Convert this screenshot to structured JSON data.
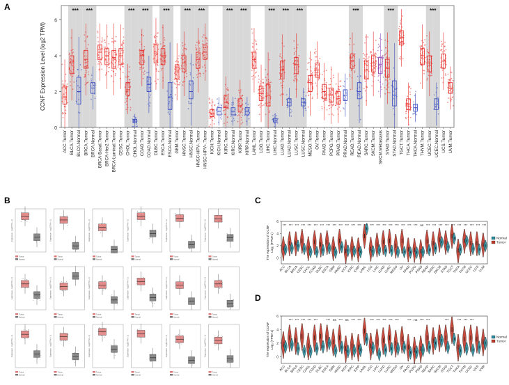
{
  "figure": {
    "panel_labels": [
      "A",
      "B",
      "C",
      "D"
    ]
  },
  "colors": {
    "tumor": "#e8312c",
    "normal": "#3a4ec2",
    "metastasis": "#8e44ad",
    "shade": "#d8d8d8",
    "violin_normal": "#2a8c9c",
    "violin_tumor": "#c0392b",
    "gepia_tumor": "#e07a7a",
    "gepia_normal": "#777777"
  },
  "chart_data": [
    {
      "id": "A",
      "type": "box",
      "ylabel": "CCNF Expression Level (log2 TPM)",
      "yticks": [
        0,
        2,
        4,
        6
      ],
      "ylim": [
        0,
        6.8
      ],
      "categories": [
        "ACC.Tumor",
        "BLCA.Tumor",
        "BLCA.Normal",
        "BRCA.Tumor",
        "BRCA.Normal",
        "BRCA-Basal.Tumor",
        "BRCA-Her2.Tumor",
        "BRCA-Luminal.Tumor",
        "CESC.Tumor",
        "CHOL.Tumor",
        "CHOL.Normal",
        "COAD.Tumor",
        "COAD.Normal",
        "DLBC.Tumor",
        "ESCA.Tumor",
        "ESCA.Normal",
        "GBM.Tumor",
        "HNSC.Tumor",
        "HNSC.Normal",
        "HNSC-HPV-.Tumor",
        "HNSC-HPV+.Tumor",
        "KICH.Tumor",
        "KICH.Normal",
        "KIRC.Tumor",
        "KIRC.Normal",
        "KIRP.Tumor",
        "KIRP.Normal",
        "LAML.Tumor",
        "LGG.Tumor",
        "LIHC.Tumor",
        "LIHC.Normal",
        "LUAD.Tumor",
        "LUAD.Normal",
        "LUSC.Tumor",
        "LUSC.Normal",
        "MESO.Tumor",
        "OV.Tumor",
        "PAAD.Tumor",
        "PCPG.Tumor",
        "PRAD.Tumor",
        "PRAD.Normal",
        "READ.Tumor",
        "READ.Normal",
        "SARC.Tumor",
        "SKCM.Tumor",
        "SKCM.Metastasis",
        "STAD.Tumor",
        "STAD.Normal",
        "TGCT.Tumor",
        "THCA.Tumor",
        "THCA.Normal",
        "THYM.Tumor",
        "UCEC.Tumor",
        "UCEC.Normal",
        "UCS.Tumor",
        "UVM.Tumor"
      ],
      "medians": [
        1.7,
        3.6,
        2.0,
        3.8,
        2.2,
        4.2,
        4.0,
        3.9,
        4.0,
        2.1,
        0.35,
        4.0,
        2.4,
        4.1,
        4.0,
        1.7,
        3.1,
        3.6,
        2.0,
        3.8,
        4.2,
        0.8,
        0.9,
        1.4,
        0.9,
        1.2,
        0.9,
        3.8,
        1.9,
        1.8,
        0.4,
        3.2,
        1.4,
        3.5,
        1.4,
        2.5,
        3.2,
        2.0,
        1.8,
        1.6,
        1.8,
        3.7,
        2.0,
        3.2,
        3.6,
        3.5,
        3.3,
        1.8,
        5.0,
        1.3,
        1.1,
        4.0,
        3.6,
        1.3,
        3.7,
        2.2
      ],
      "q1": [
        1.3,
        3.0,
        1.3,
        3.3,
        1.9,
        3.8,
        3.5,
        3.3,
        3.5,
        1.8,
        0.25,
        3.5,
        2.0,
        3.6,
        3.5,
        1.0,
        2.7,
        3.1,
        1.6,
        3.3,
        3.8,
        0.6,
        0.7,
        1.1,
        0.7,
        0.9,
        0.7,
        3.3,
        1.5,
        1.2,
        0.3,
        2.7,
        1.2,
        3.0,
        1.2,
        2.0,
        2.8,
        1.6,
        1.4,
        1.3,
        1.5,
        3.3,
        1.6,
        2.7,
        3.1,
        3.0,
        2.8,
        1.2,
        4.6,
        1.0,
        0.9,
        3.5,
        3.1,
        1.0,
        3.3,
        1.9
      ],
      "q3": [
        2.3,
        4.0,
        2.8,
        4.3,
        2.5,
        4.6,
        4.4,
        4.3,
        4.4,
        2.5,
        0.45,
        4.3,
        2.8,
        4.6,
        4.4,
        2.5,
        3.5,
        4.0,
        2.6,
        4.2,
        4.6,
        1.0,
        1.1,
        1.8,
        1.1,
        1.6,
        1.1,
        4.2,
        2.3,
        2.4,
        0.5,
        3.7,
        1.6,
        3.9,
        1.6,
        2.9,
        3.6,
        2.4,
        2.2,
        2.0,
        2.1,
        4.1,
        2.5,
        3.7,
        4.0,
        3.9,
        3.8,
        2.6,
        5.4,
        1.6,
        1.3,
        4.4,
        4.0,
        1.6,
        4.1,
        2.5
      ],
      "shaded": [
        false,
        true,
        true,
        true,
        true,
        false,
        false,
        false,
        false,
        true,
        true,
        true,
        true,
        false,
        true,
        true,
        false,
        true,
        true,
        true,
        true,
        false,
        false,
        true,
        true,
        true,
        true,
        false,
        false,
        true,
        true,
        true,
        true,
        true,
        true,
        false,
        false,
        false,
        false,
        false,
        false,
        true,
        true,
        false,
        false,
        false,
        true,
        true,
        false,
        false,
        false,
        false,
        true,
        true,
        false,
        false
      ],
      "significance": [
        {
          "index": 1,
          "label": "***"
        },
        {
          "index": 3,
          "label": "***"
        },
        {
          "index": 9,
          "label": "***"
        },
        {
          "index": 11,
          "label": "***"
        },
        {
          "index": 14,
          "label": "***"
        },
        {
          "index": 17,
          "label": "***"
        },
        {
          "index": 19,
          "label": "***"
        },
        {
          "index": 23,
          "label": "***"
        },
        {
          "index": 25,
          "label": "***"
        },
        {
          "index": 29,
          "label": "***"
        },
        {
          "index": 31,
          "label": "***"
        },
        {
          "index": 33,
          "label": "***"
        },
        {
          "index": 41,
          "label": "***"
        },
        {
          "index": 46,
          "label": "***"
        },
        {
          "index": 52,
          "label": "***"
        }
      ]
    },
    {
      "id": "B",
      "type": "box-grid",
      "rows": 3,
      "cols": 6,
      "ylabel": "Expression - log2(TPM + 1)",
      "legend_tumor": "Tumor",
      "legend_normal": "Normal",
      "cells": [
        {
          "tumor": 5.8,
          "normal": 2.4
        },
        {
          "tumor": 5.2,
          "normal": 1.0
        },
        {
          "tumor": 4.0,
          "normal": 0.4
        },
        {
          "tumor": 5.8,
          "normal": 3.0
        },
        {
          "tumor": 5.5,
          "normal": 1.2
        },
        {
          "tumor": 5.4,
          "normal": 2.3
        },
        {
          "tumor": 4.2,
          "normal": 2.4
        },
        {
          "tumor": 3.8,
          "normal": 5.5
        },
        {
          "tumor": 4.0,
          "normal": 1.6
        },
        {
          "tumor": 4.6,
          "normal": 2.0
        },
        {
          "tumor": 4.0,
          "normal": 1.4
        },
        {
          "tumor": 4.2,
          "normal": 1.0
        },
        {
          "tumor": 5.4,
          "normal": 2.2
        },
        {
          "tumor": 5.0,
          "normal": 1.8
        },
        {
          "tumor": 5.8,
          "normal": 3.0
        },
        {
          "tumor": 5.5,
          "normal": 1.6
        },
        {
          "tumor": 4.6,
          "normal": 1.2
        },
        {
          "tumor": 4.4,
          "normal": 1.4
        }
      ]
    },
    {
      "id": "C",
      "type": "violin",
      "ylabel": "The expression of CCNF\nLog₂ (TPM+1)",
      "yticks": [
        0,
        2,
        4,
        6
      ],
      "ylim": [
        -1,
        6
      ],
      "legend": [
        "Normal",
        "Tumor"
      ],
      "categories": [
        "ACC",
        "BLCA",
        "BRCA",
        "CESC",
        "CHOL",
        "COAD",
        "DLBC",
        "ESCA",
        "GBM",
        "HNSC",
        "KICH",
        "KIRC",
        "KIRP",
        "LAML",
        "LGG",
        "LIHC",
        "LUAD",
        "LUSC",
        "MESO",
        "OV",
        "PAAD",
        "PCPG",
        "PRAD",
        "READ",
        "SARC",
        "SKCM",
        "STAD",
        "TGCT",
        "THCA",
        "THYM",
        "UCEC",
        "UCS",
        "UVM"
      ],
      "normal_medians": [
        1.4,
        1.6,
        2.0,
        1.5,
        1.0,
        1.0,
        1.3,
        1.6,
        0.9,
        1.8,
        1.2,
        1.1,
        1.0,
        4.8,
        1.1,
        1.3,
        1.2,
        1.2,
        1.0,
        1.0,
        0.9,
        0.9,
        1.0,
        1.3,
        1.6,
        2.6,
        1.8,
        3.2,
        1.4,
        2.8,
        1.5,
        1.4,
        2.0
      ],
      "tumor_medians": [
        1.6,
        2.4,
        2.4,
        2.8,
        1.6,
        2.6,
        2.2,
        2.6,
        1.6,
        2.8,
        1.1,
        1.6,
        1.4,
        3.6,
        1.5,
        2.2,
        2.6,
        2.8,
        2.0,
        2.8,
        1.4,
        1.3,
        1.1,
        2.7,
        2.4,
        3.0,
        2.6,
        3.6,
        1.2,
        2.8,
        2.4,
        2.4,
        2.2
      ],
      "significance": [
        "***",
        "***",
        "***",
        "***",
        "***",
        "***",
        "***",
        "***",
        "***",
        "***",
        "***",
        "***",
        "***",
        "***",
        "***",
        "***",
        "***",
        "***",
        "***",
        "***",
        "***",
        "***",
        "ns",
        "***",
        "***",
        "***",
        "***",
        "***",
        "***",
        "***",
        "***",
        "***",
        "***"
      ]
    },
    {
      "id": "D",
      "type": "violin",
      "ylabel": "The expression of CCNF\nLog₂ (TPM+1)",
      "yticks": [
        0,
        2,
        4,
        6
      ],
      "ylim": [
        -1,
        6
      ],
      "legend": [
        "Normal",
        "Tumor"
      ],
      "categories": [
        "ACC",
        "BLCA",
        "BRCA",
        "CESC",
        "CHOL",
        "COAD",
        "DLBC",
        "ESCA",
        "GBM",
        "HNSC",
        "KICH",
        "KIRC",
        "KIRP",
        "LAML",
        "LGG",
        "LIHC",
        "LUAD",
        "LUSC",
        "MESO",
        "OV",
        "PAAD",
        "PCPG",
        "PRAD",
        "READ",
        "SARC",
        "SKCM",
        "STAD",
        "TGCT",
        "THCA",
        "THYM",
        "UCEC",
        "UCS",
        "UVM"
      ],
      "normal_medians": [
        1.5,
        1.8,
        1.2,
        0.8,
        0.8,
        1.2,
        1.5,
        2.0,
        0.9,
        1.4,
        0.8,
        0.9,
        1.0,
        2.6,
        1.3,
        0.4,
        1.0,
        1.2,
        1.2,
        1.4,
        0.6,
        0.7,
        1.0,
        1.4,
        2.0,
        2.4,
        1.4,
        2.6,
        0.9,
        1.2,
        1.0,
        1.4,
        2.0
      ],
      "tumor_medians": [
        1.8,
        2.8,
        2.4,
        3.0,
        1.6,
        2.8,
        3.0,
        2.8,
        2.2,
        2.8,
        1.2,
        1.6,
        1.4,
        3.8,
        1.6,
        2.2,
        2.4,
        2.8,
        2.0,
        2.6,
        1.4,
        1.0,
        1.2,
        2.8,
        2.4,
        2.8,
        2.8,
        4.0,
        1.4,
        2.6,
        2.8,
        2.6,
        2.2
      ],
      "significance": [
        "",
        "***",
        "***",
        "***",
        "***",
        "***",
        "",
        "***",
        "ns",
        "***",
        "ns",
        "***",
        "***",
        "",
        "***",
        "***",
        "***",
        "***",
        "***",
        "",
        "***",
        "ns",
        "***",
        "***",
        "",
        "",
        "***",
        "",
        "***",
        "***",
        "***",
        "",
        ""
      ]
    }
  ]
}
